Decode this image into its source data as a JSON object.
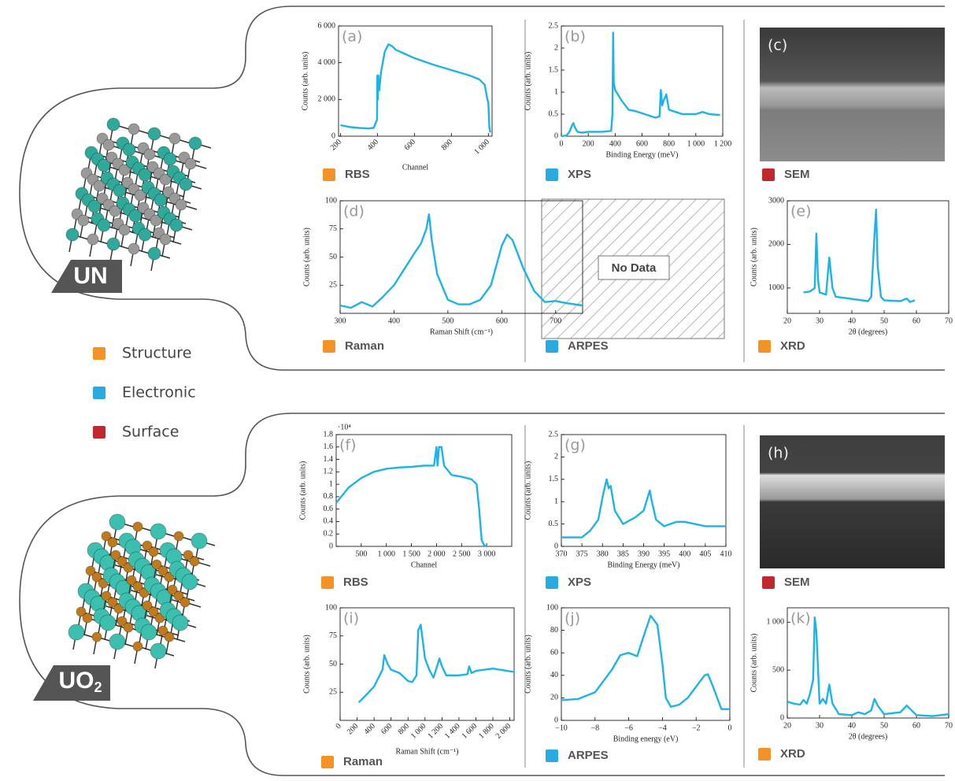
{
  "materials": [
    {
      "label": "UN"
    },
    {
      "label": "UO",
      "subscript": "2"
    }
  ],
  "legend": [
    {
      "name": "Structure",
      "color": "#f39325"
    },
    {
      "name": "Electronic",
      "color": "#29abe2"
    },
    {
      "name": "Surface",
      "color": "#c1272d"
    }
  ],
  "image_panels": [
    {
      "annotation": "(c)",
      "technique": "SEM",
      "technique_color": "#c1272d"
    },
    {
      "annotation": "(h)",
      "technique": "SEM",
      "technique_color": "#c1272d"
    }
  ],
  "empty_panels": [
    {
      "technique": "ARPES",
      "technique_color": "#29abe2",
      "text": "No Data"
    }
  ],
  "chart_data": [
    {
      "type": "line",
      "annotation": "(a)",
      "technique": "RBS",
      "technique_color": "#f39325",
      "xlabel": "Channel",
      "ylabel": "Counts (arb. units)",
      "color": "#1cb4e8",
      "xtick_rotation": -45,
      "x": [
        200,
        250,
        300,
        350,
        380,
        398,
        400,
        402,
        405,
        410,
        420,
        440,
        460,
        480,
        500,
        600,
        700,
        800,
        900,
        950,
        980,
        995,
        1000,
        1005,
        1010
      ],
      "values": [
        600,
        500,
        450,
        420,
        450,
        900,
        3300,
        2000,
        3300,
        2500,
        3500,
        4600,
        5000,
        4900,
        4700,
        4250,
        3900,
        3600,
        3300,
        3100,
        2800,
        2000,
        1800,
        500,
        200
      ],
      "xlim": [
        190,
        1020
      ],
      "ylim": [
        0,
        6000
      ],
      "xticks": [
        200,
        400,
        600,
        800,
        {
          "value": 1000,
          "label": "1 000"
        }
      ],
      "yticks": [
        0,
        {
          "value": 2000,
          "label": "2 000"
        },
        {
          "value": 4000,
          "label": "4 000"
        },
        {
          "value": 6000,
          "label": "6 000"
        }
      ]
    },
    {
      "type": "line",
      "annotation": "(b)",
      "technique": "XPS",
      "technique_color": "#29abe2",
      "xlabel": "Binding Energy (meV)",
      "ylabel": "Counts (arb. units)",
      "color": "#1cb4e8",
      "x": [
        0,
        40,
        60,
        80,
        90,
        100,
        120,
        150,
        200,
        300,
        370,
        380,
        385,
        390,
        400,
        450,
        500,
        550,
        600,
        700,
        730,
        740,
        750,
        760,
        780,
        800,
        850,
        900,
        1000,
        1050,
        1100,
        1180
      ],
      "values": [
        0,
        0.02,
        0.1,
        0.25,
        0.3,
        0.2,
        0.1,
        0.08,
        0.1,
        0.1,
        0.12,
        0.5,
        2.35,
        1.2,
        1.05,
        0.8,
        0.6,
        0.57,
        0.52,
        0.42,
        0.45,
        1.05,
        0.7,
        0.8,
        0.95,
        0.6,
        0.55,
        0.5,
        0.5,
        0.55,
        0.5,
        0.48
      ],
      "xlim": [
        0,
        1200
      ],
      "ylim": [
        0,
        2.5
      ],
      "xticks": [
        0,
        200,
        400,
        600,
        800,
        {
          "value": 1000,
          "label": "1 000"
        },
        {
          "value": 1200,
          "label": "1 200"
        }
      ],
      "yticks": [
        0,
        0.5,
        1,
        1.5,
        2,
        2.5
      ]
    },
    {
      "type": "line",
      "annotation": "(d)",
      "technique": "Raman",
      "technique_color": "#f39325",
      "xlabel": "Raman Shift (cm⁻¹)",
      "ylabel": "Counts (arb. units)",
      "color": "#1cb4e8",
      "x": [
        300,
        320,
        340,
        360,
        380,
        400,
        420,
        440,
        450,
        460,
        465,
        470,
        480,
        500,
        520,
        540,
        560,
        580,
        600,
        610,
        620,
        640,
        660,
        680,
        700,
        720,
        750
      ],
      "values": [
        7,
        5,
        10,
        6,
        15,
        25,
        40,
        55,
        62,
        75,
        88,
        65,
        35,
        12,
        8,
        8,
        12,
        25,
        60,
        70,
        65,
        40,
        20,
        10,
        11,
        9,
        7
      ],
      "xlim": [
        300,
        750
      ],
      "ylim": [
        0,
        100
      ],
      "xticks": [
        300,
        400,
        500,
        600,
        700
      ],
      "yticks": [
        25,
        50,
        75,
        100
      ]
    },
    {
      "type": "line",
      "annotation": "(e)",
      "technique": "XRD",
      "technique_color": "#f39325",
      "xlabel": "2θ (degrees)",
      "ylabel": "Counts (arb. units)",
      "color": "#1cb4e8",
      "x": [
        25,
        27,
        28.5,
        29,
        29.5,
        30,
        32,
        33,
        34,
        35,
        40,
        45,
        46,
        47,
        47.5,
        48,
        49,
        50,
        55,
        57,
        58,
        59.5
      ],
      "values": [
        900,
        920,
        1000,
        2250,
        1200,
        900,
        850,
        1700,
        1000,
        800,
        750,
        700,
        800,
        2200,
        2800,
        1500,
        800,
        720,
        700,
        760,
        680,
        720
      ],
      "xlim": [
        20,
        70
      ],
      "ylim": [
        420,
        3000
      ],
      "xticks": [
        20,
        30,
        40,
        50,
        60,
        70
      ],
      "yticks": [
        1000,
        2000,
        3000
      ]
    },
    {
      "type": "line",
      "annotation": "(f)",
      "technique": "RBS",
      "technique_color": "#f39325",
      "xlabel": "Channel",
      "ylabel": "Counts (arb. units)",
      "y_multiplier": "·10⁴",
      "color": "#1cb4e8",
      "x": [
        0,
        250,
        500,
        750,
        1000,
        1250,
        1500,
        1750,
        1950,
        2000,
        2020,
        2050,
        2100,
        2150,
        2200,
        2300,
        2500,
        2700,
        2800,
        2850,
        2900,
        2950,
        3000
      ],
      "values": [
        0.7,
        0.95,
        1.1,
        1.2,
        1.25,
        1.27,
        1.28,
        1.3,
        1.3,
        1.6,
        1.3,
        1.6,
        1.6,
        1.3,
        1.25,
        1.15,
        1.12,
        1.08,
        1.0,
        0.6,
        0.1,
        0.02,
        0
      ],
      "xlim": [
        0,
        3500
      ],
      "ylim": [
        0,
        1.8
      ],
      "xticks": [
        500,
        {
          "value": 1000,
          "label": "1 000"
        },
        {
          "value": 1500,
          "label": "1 500"
        },
        {
          "value": 2000,
          "label": "2 000"
        },
        {
          "value": 2500,
          "label": "2 500"
        },
        {
          "value": 3000,
          "label": "3 000"
        }
      ],
      "yticks": [
        0,
        0.2,
        0.4,
        0.6,
        0.8,
        1,
        1.2,
        1.4,
        1.6,
        1.8
      ]
    },
    {
      "type": "line",
      "annotation": "(g)",
      "technique": "XPS",
      "technique_color": "#29abe2",
      "xlabel": "Binding Energy (meV)",
      "ylabel": "Counts (arb. units)",
      "color": "#1cb4e8",
      "x": [
        370,
        375,
        377,
        379,
        380,
        381,
        381.5,
        382,
        383,
        385,
        388,
        390,
        391,
        391.5,
        392,
        393,
        395,
        398,
        400,
        405,
        410
      ],
      "values": [
        0.2,
        0.2,
        0.35,
        0.6,
        1.1,
        1.5,
        1.3,
        1.35,
        0.8,
        0.5,
        0.65,
        0.8,
        1.1,
        1.25,
        1.0,
        0.6,
        0.45,
        0.55,
        0.55,
        0.45,
        0.45
      ],
      "xlim": [
        370,
        410
      ],
      "ylim": [
        0,
        2.5
      ],
      "xticks": [
        370,
        375,
        380,
        385,
        390,
        395,
        400,
        405,
        410
      ],
      "yticks": [
        0,
        0.5,
        1,
        1.5,
        2,
        2.5
      ]
    },
    {
      "type": "line",
      "annotation": "(i)",
      "technique": "Raman",
      "technique_color": "#f39325",
      "xlabel": "Raman Shift (cm⁻¹)",
      "ylabel": "Counts (arb. units)",
      "color": "#1cb4e8",
      "xtick_rotation": -45,
      "x": [
        220,
        300,
        400,
        500,
        520,
        560,
        600,
        700,
        800,
        850,
        900,
        920,
        950,
        1000,
        1050,
        1100,
        1150,
        1170,
        1200,
        1250,
        1300,
        1400,
        1500,
        1520,
        1550,
        1600,
        1800,
        2050
      ],
      "values": [
        16,
        22,
        30,
        45,
        58,
        50,
        45,
        42,
        35,
        34,
        40,
        80,
        85,
        55,
        45,
        38,
        50,
        55,
        48,
        40,
        40,
        40,
        41,
        48,
        42,
        44,
        46,
        43
      ],
      "xlim": [
        0,
        2050
      ],
      "ylim": [
        0,
        100
      ],
      "xticks": [
        0,
        200,
        400,
        600,
        800,
        {
          "value": 1000,
          "label": "1 000"
        },
        {
          "value": 1200,
          "label": "1 200"
        },
        {
          "value": 1400,
          "label": "1 400"
        },
        {
          "value": 1600,
          "label": "1 600"
        },
        {
          "value": 1800,
          "label": "1 800"
        },
        {
          "value": 2000,
          "label": "2 000"
        }
      ],
      "yticks": [
        25,
        50,
        75,
        100
      ]
    },
    {
      "type": "line",
      "annotation": "(j)",
      "technique": "ARPES",
      "technique_color": "#29abe2",
      "xlabel": "Binding energy (eV)",
      "ylabel": "Counts (arb. units)",
      "color": "#1cb4e8",
      "x": [
        -10,
        -9,
        -8,
        -7,
        -6.5,
        -6,
        -5.5,
        -5,
        -4.7,
        -4.3,
        -4,
        -3.8,
        -3.5,
        -3,
        -2.5,
        -2,
        -1.5,
        -1.3,
        -1,
        -0.5,
        0
      ],
      "values": [
        18,
        19,
        25,
        45,
        58,
        60,
        57,
        80,
        93,
        85,
        50,
        20,
        12,
        14,
        20,
        30,
        40,
        41,
        30,
        10,
        10
      ],
      "xlim": [
        -10,
        0
      ],
      "ylim": [
        0,
        100
      ],
      "xticks": [
        {
          "value": -10,
          "label": "−10"
        },
        {
          "value": -8,
          "label": "−8"
        },
        {
          "value": -6,
          "label": "−6"
        },
        {
          "value": -4,
          "label": "−4"
        },
        {
          "value": -2,
          "label": "−2"
        },
        0
      ],
      "yticks": [
        0,
        20,
        40,
        60,
        80,
        100
      ]
    },
    {
      "type": "line",
      "annotation": "(k)",
      "technique": "XRD",
      "technique_color": "#f39325",
      "xlabel": "2θ (degrees)",
      "ylabel": "Counts (arb. units)",
      "color": "#1cb4e8",
      "x": [
        20,
        22,
        24,
        25,
        26,
        27,
        28,
        28.5,
        29,
        30,
        31,
        32,
        33,
        34,
        36,
        40,
        42,
        44,
        46,
        47,
        48,
        50,
        55,
        57,
        60,
        65,
        70
      ],
      "values": [
        170,
        150,
        140,
        190,
        150,
        250,
        400,
        1050,
        900,
        150,
        200,
        150,
        350,
        150,
        40,
        30,
        60,
        40,
        80,
        200,
        130,
        40,
        60,
        130,
        30,
        20,
        40
      ],
      "xlim": [
        20,
        70
      ],
      "ylim": [
        0,
        1150
      ],
      "xticks": [
        20,
        30,
        40,
        50,
        60,
        70
      ],
      "yticks": [
        0,
        500,
        {
          "value": 1000,
          "label": "1 000"
        }
      ]
    }
  ]
}
